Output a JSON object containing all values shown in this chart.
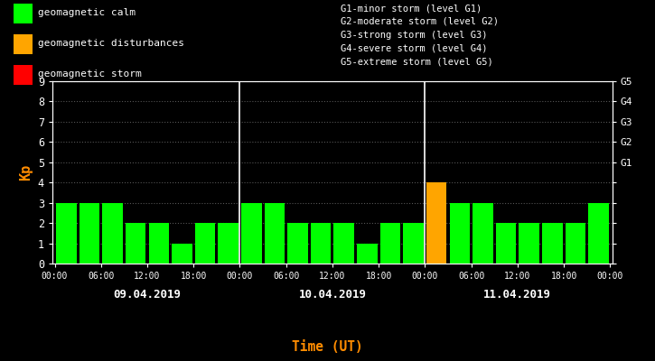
{
  "background_color": "#000000",
  "plot_bg_color": "#000000",
  "text_color": "#ffffff",
  "axis_color": "#ffffff",
  "grid_color": "#555555",
  "kp_label_color": "#ff8c00",
  "xlabel": "Time (UT)",
  "xlabel_color": "#ff8c00",
  "ylabel": "Kp",
  "ylim": [
    0,
    9
  ],
  "yticks": [
    0,
    1,
    2,
    3,
    4,
    5,
    6,
    7,
    8,
    9
  ],
  "day_labels": [
    "09.04.2019",
    "10.04.2019",
    "11.04.2019"
  ],
  "xtick_labels": [
    "00:00",
    "06:00",
    "12:00",
    "18:00",
    "00:00",
    "06:00",
    "12:00",
    "18:00",
    "00:00",
    "06:00",
    "12:00",
    "18:00",
    "00:00"
  ],
  "bar_values": [
    3,
    3,
    3,
    2,
    2,
    1,
    2,
    2,
    3,
    3,
    2,
    2,
    2,
    1,
    2,
    2,
    4,
    3,
    3,
    2,
    2,
    2,
    2,
    3
  ],
  "bar_colors": [
    "#00ff00",
    "#00ff00",
    "#00ff00",
    "#00ff00",
    "#00ff00",
    "#00ff00",
    "#00ff00",
    "#00ff00",
    "#00ff00",
    "#00ff00",
    "#00ff00",
    "#00ff00",
    "#00ff00",
    "#00ff00",
    "#00ff00",
    "#00ff00",
    "#ffa500",
    "#00ff00",
    "#00ff00",
    "#00ff00",
    "#00ff00",
    "#00ff00",
    "#00ff00",
    "#00ff00"
  ],
  "legend_items": [
    {
      "label": "geomagnetic calm",
      "color": "#00ff00"
    },
    {
      "label": "geomagnetic disturbances",
      "color": "#ffa500"
    },
    {
      "label": "geomagnetic storm",
      "color": "#ff0000"
    }
  ],
  "right_legend": [
    "G1-minor storm (level G1)",
    "G2-moderate storm (level G2)",
    "G3-strong storm (level G3)",
    "G4-severe storm (level G4)",
    "G5-extreme storm (level G5)"
  ],
  "right_ytick_labels": [
    "",
    "",
    "",
    "",
    "",
    "G1",
    "G2",
    "G3",
    "G4",
    "G5"
  ],
  "font_family": "monospace",
  "fig_width": 7.25,
  "fig_height": 4.0,
  "dpi": 100
}
